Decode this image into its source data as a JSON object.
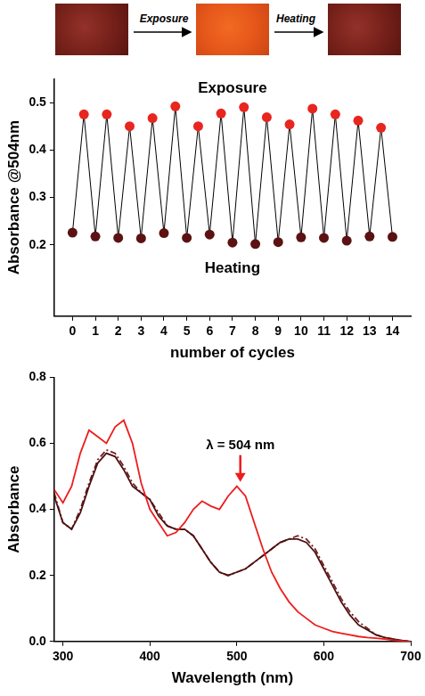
{
  "scheme": {
    "steps": [
      "Exposure",
      "Heating"
    ]
  },
  "chart_data": [
    {
      "type": "line",
      "x_label": "number of cycles",
      "y_label": "Absorbance @504nm",
      "x": [
        0,
        0.5,
        1,
        1.5,
        2,
        2.5,
        3,
        3.5,
        4,
        4.5,
        5,
        5.5,
        6,
        6.5,
        7,
        7.5,
        8,
        8.5,
        9,
        9.5,
        10,
        10.5,
        11,
        11.5,
        12,
        12.5,
        13,
        13.5,
        14
      ],
      "values": [
        0.226,
        0.475,
        0.218,
        0.475,
        0.215,
        0.45,
        0.214,
        0.467,
        0.225,
        0.492,
        0.215,
        0.45,
        0.222,
        0.477,
        0.205,
        0.49,
        0.202,
        0.469,
        0.206,
        0.454,
        0.216,
        0.487,
        0.215,
        0.475,
        0.209,
        0.462,
        0.218,
        0.447,
        0.217
      ],
      "color": "#000000",
      "colors": [
        "#5c1212",
        "#e8251f",
        "#5c1212",
        "#e8251f",
        "#5c1212",
        "#e8251f",
        "#5c1212",
        "#e8251f",
        "#5c1212",
        "#e8251f",
        "#5c1212",
        "#e8251f",
        "#5c1212",
        "#e8251f",
        "#5c1212",
        "#e8251f",
        "#5c1212",
        "#e8251f",
        "#5c1212",
        "#e8251f",
        "#5c1212",
        "#e8251f",
        "#5c1212",
        "#e8251f",
        "#5c1212",
        "#e8251f",
        "#5c1212",
        "#e8251f",
        "#5c1212"
      ],
      "marker": "circle",
      "line_style": "solid",
      "xlim": [
        -0.8,
        14.8
      ],
      "xticks": [
        0,
        1,
        2,
        3,
        4,
        5,
        6,
        7,
        8,
        9,
        10,
        11,
        12,
        13,
        14
      ],
      "ylim": [
        0.05,
        0.55
      ],
      "yticks": [
        0.2,
        0.3,
        0.4,
        0.5
      ],
      "grid": false,
      "annotations": [
        {
          "text": "Exposure",
          "x": 7,
          "y": 0.53
        },
        {
          "text": "Heating",
          "x": 7,
          "y": 0.15
        }
      ]
    },
    {
      "type": "line",
      "x_label": "Wavelength (nm)",
      "y_label": "Absorbance",
      "x": [
        290,
        300,
        310,
        320,
        330,
        340,
        350,
        360,
        370,
        380,
        390,
        400,
        410,
        420,
        430,
        440,
        450,
        460,
        470,
        480,
        490,
        500,
        510,
        520,
        530,
        540,
        550,
        560,
        570,
        580,
        590,
        600,
        610,
        620,
        630,
        640,
        650,
        660,
        670,
        680,
        690,
        700
      ],
      "series": [
        {
          "color": "#ee1c1c",
          "line_style": "solid",
          "marker": "none",
          "values": [
            0.46,
            0.42,
            0.47,
            0.57,
            0.64,
            0.62,
            0.6,
            0.65,
            0.67,
            0.6,
            0.48,
            0.4,
            0.36,
            0.32,
            0.33,
            0.36,
            0.4,
            0.425,
            0.41,
            0.4,
            0.44,
            0.47,
            0.44,
            0.36,
            0.28,
            0.21,
            0.16,
            0.12,
            0.09,
            0.07,
            0.05,
            0.04,
            0.03,
            0.025,
            0.02,
            0.015,
            0.012,
            0.01,
            0.007,
            0.004,
            0.002,
            0.0
          ]
        },
        {
          "color": "#4f1010",
          "line_style": "solid",
          "marker": "none",
          "values": [
            0.44,
            0.36,
            0.34,
            0.39,
            0.47,
            0.54,
            0.57,
            0.56,
            0.52,
            0.47,
            0.45,
            0.43,
            0.38,
            0.35,
            0.34,
            0.34,
            0.32,
            0.28,
            0.24,
            0.21,
            0.2,
            0.21,
            0.22,
            0.24,
            0.26,
            0.28,
            0.3,
            0.31,
            0.31,
            0.3,
            0.27,
            0.22,
            0.17,
            0.12,
            0.08,
            0.05,
            0.035,
            0.02,
            0.012,
            0.007,
            0.003,
            0.0
          ]
        },
        {
          "color": "#6e1f1f",
          "line_style": "dashdot",
          "marker": "none",
          "values": [
            0.45,
            0.36,
            0.34,
            0.4,
            0.48,
            0.55,
            0.58,
            0.57,
            0.53,
            0.48,
            0.45,
            0.43,
            0.39,
            0.35,
            0.34,
            0.34,
            0.32,
            0.28,
            0.24,
            0.21,
            0.2,
            0.21,
            0.22,
            0.24,
            0.26,
            0.28,
            0.3,
            0.31,
            0.32,
            0.31,
            0.28,
            0.23,
            0.18,
            0.13,
            0.09,
            0.06,
            0.04,
            0.02,
            0.012,
            0.007,
            0.003,
            0.0
          ]
        }
      ],
      "xlim": [
        290,
        700
      ],
      "xticks": [
        300,
        400,
        500,
        600,
        700
      ],
      "ylim": [
        0,
        0.8
      ],
      "yticks": [
        {
          "value": 0,
          "label": "0.0"
        },
        0.2,
        0.4,
        0.6,
        0.8
      ],
      "grid": false,
      "annotations": [
        {
          "text": "λ = 504 nm",
          "x": 504,
          "y": 0.47,
          "marker": "arrow"
        }
      ]
    }
  ]
}
